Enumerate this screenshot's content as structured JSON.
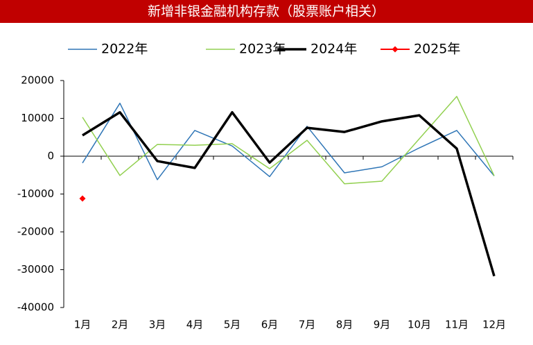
{
  "chart_data": {
    "type": "line",
    "title": "新增非银金融机构存款（股票账户相关）",
    "categories": [
      "1月",
      "2月",
      "3月",
      "4月",
      "5月",
      "6月",
      "7月",
      "8月",
      "9月",
      "10月",
      "11月",
      "12月"
    ],
    "series": [
      {
        "name": "2022年",
        "color": "#2e75b6",
        "width": 1.5,
        "values": [
          -1800,
          14000,
          -6200,
          6800,
          2700,
          -5400,
          7900,
          -4400,
          -2800,
          2200,
          6800,
          -5200
        ]
      },
      {
        "name": "2023年",
        "color": "#92d050",
        "width": 1.5,
        "values": [
          10300,
          -5100,
          3100,
          2900,
          3300,
          -3300,
          4200,
          -7300,
          -6600,
          4600,
          15800,
          -5200
        ]
      },
      {
        "name": "2024年",
        "color": "#000000",
        "width": 3.5,
        "values": [
          5500,
          11600,
          -1300,
          -3100,
          11600,
          -1700,
          7500,
          6400,
          9200,
          10800,
          2000,
          -31700
        ]
      },
      {
        "name": "2025年",
        "color": "#ff0000",
        "width": 2,
        "marker": "diamond",
        "values": [
          -11200,
          null,
          null,
          null,
          null,
          null,
          null,
          null,
          null,
          null,
          null,
          null
        ]
      }
    ],
    "ylim": [
      -40000,
      20000
    ],
    "yticks": [
      -40000,
      -30000,
      -20000,
      -10000,
      0,
      10000,
      20000
    ]
  }
}
